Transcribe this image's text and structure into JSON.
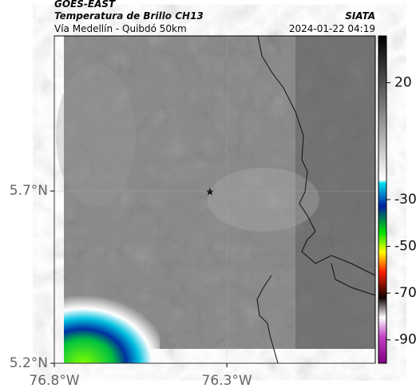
{
  "header": {
    "source": "GOES-EAST",
    "product": "Temperatura de Brillo CH13",
    "agency": "SIATA",
    "route": "Vía Medellín - Quibdó 50km",
    "datetime": "2024-01-22 04:19"
  },
  "map": {
    "lat_ticks": [
      {
        "value": 5.7,
        "label": "5.7°N"
      },
      {
        "value": 5.2,
        "label": "5.2°N"
      }
    ],
    "lon_ticks": [
      {
        "value": -76.8,
        "label": "76.8°W"
      },
      {
        "value": -76.3,
        "label": "76.3°W"
      }
    ],
    "latlim": [
      5.2,
      6.15
    ],
    "lonlim": [
      -76.8,
      -75.87
    ]
  },
  "colorbar": {
    "clim": [
      -100,
      40
    ],
    "ticks": [
      20,
      -30,
      -50,
      -70,
      -90
    ]
  }
}
